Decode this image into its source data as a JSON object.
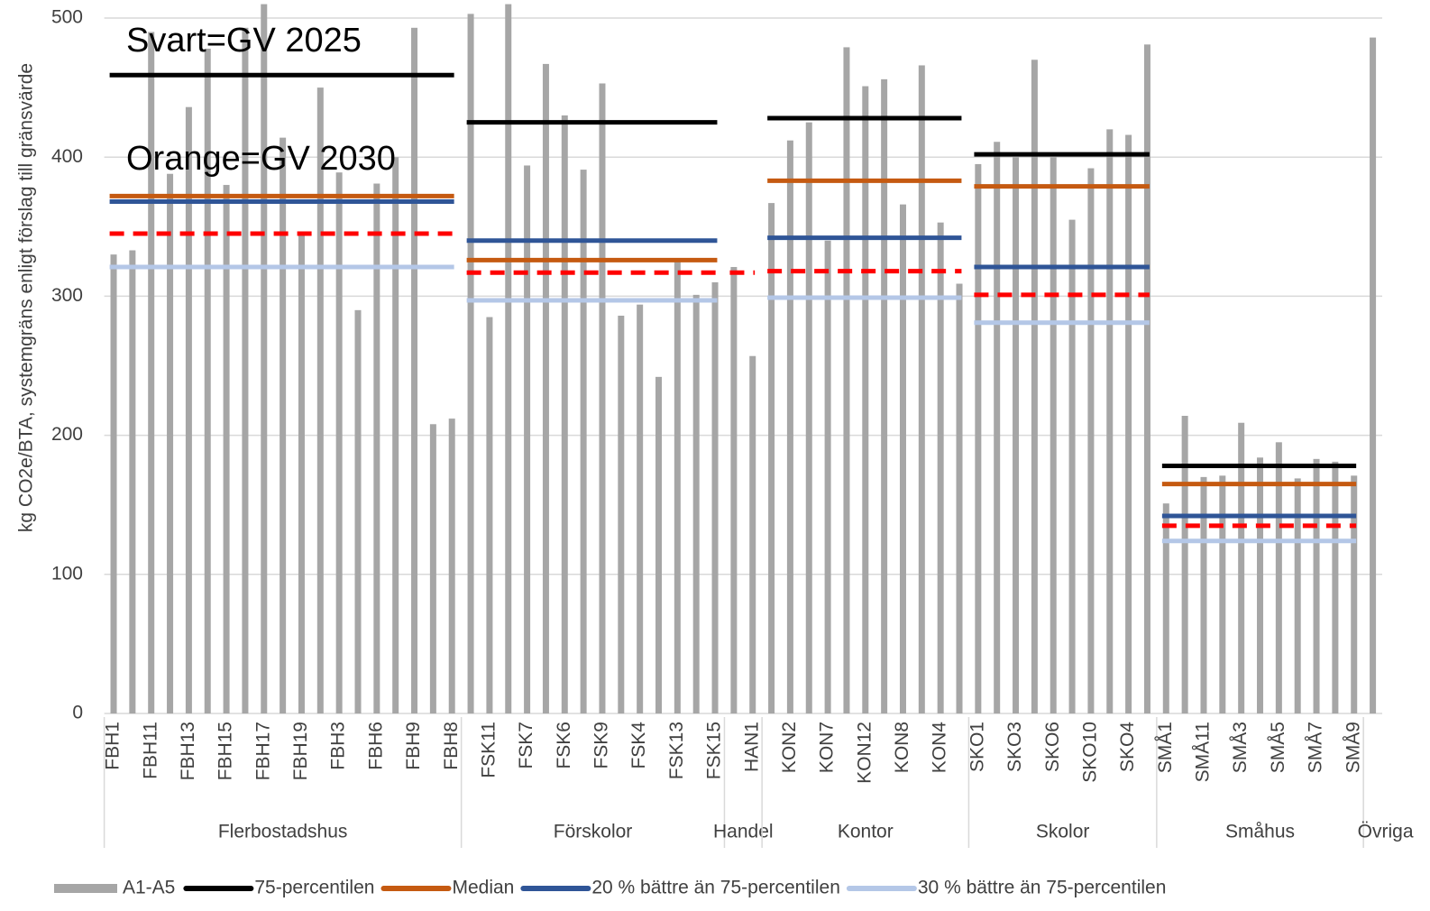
{
  "chart_data": {
    "type": "bar",
    "y_label": "kg CO2e/BTA, systemgräns enligt förslag till gränsvärde",
    "annotations": [
      "Svart=GV 2025",
      "Orange=GV 2030"
    ],
    "groups": [
      {
        "name": "Flerbostadshus",
        "categories": [
          "FBH1",
          null,
          "FBH11",
          null,
          "FBH13",
          null,
          "FBH15",
          null,
          "FBH17",
          null,
          "FBH19",
          null,
          "FBH3",
          null,
          "FBH6",
          null,
          "FBH9",
          null,
          "FBH8"
        ]
      },
      {
        "name": "Förskolor",
        "categories": [
          null,
          "FSK11",
          null,
          "FSK7",
          null,
          "FSK6",
          null,
          "FSK9",
          null,
          "FSK4",
          null,
          "FSK13",
          null,
          "FSK15"
        ]
      },
      {
        "name": "Handel",
        "categories": [
          null,
          "HAN1"
        ]
      },
      {
        "name": "Kontor",
        "categories": [
          null,
          "KON2",
          null,
          "KON7",
          null,
          "KON12",
          null,
          "KON8",
          null,
          "KON4",
          null
        ]
      },
      {
        "name": "Skolor",
        "categories": [
          "SKO1",
          null,
          "SKO3",
          null,
          "SKO6",
          null,
          "SKO10",
          null,
          "SKO4",
          null
        ]
      },
      {
        "name": "Småhus",
        "categories": [
          "SMÅ1",
          null,
          "SMÅ11",
          null,
          "SMÅ3",
          null,
          "SMÅ5",
          null,
          "SMÅ7",
          null,
          "SMÅ9"
        ]
      },
      {
        "name": "Övriga",
        "categories": [
          null
        ]
      }
    ],
    "series": [
      {
        "name": "A1-A5",
        "color": "#a6a6a6",
        "values": [
          330,
          333,
          490,
          388,
          436,
          478,
          380,
          493,
          510,
          414,
          345,
          450,
          389,
          290,
          381,
          400,
          493,
          208,
          212,
          503,
          285,
          510,
          394,
          467,
          430,
          391,
          453,
          286,
          294,
          242,
          325,
          301,
          310,
          321,
          257,
          367,
          412,
          425,
          340,
          479,
          451,
          456,
          366,
          466,
          353,
          309,
          395,
          411,
          400,
          470,
          400,
          355,
          392,
          420,
          416,
          481,
          151,
          214,
          170,
          171,
          209,
          184,
          195,
          169,
          183,
          181,
          171,
          486
        ]
      }
    ],
    "lines": [
      {
        "name": "75-percentilen",
        "color": "#000000",
        "values": [
          459,
          425,
          null,
          428,
          402,
          178,
          null
        ]
      },
      {
        "name": "Median",
        "color": "#c55a11",
        "values": [
          372,
          326,
          null,
          383,
          379,
          165,
          null
        ]
      },
      {
        "name": "20 % bättre än 75-percentilen",
        "color": "#2f5597",
        "values": [
          368,
          340,
          null,
          342,
          321,
          142,
          null
        ]
      },
      {
        "name": "30 % bättre än 75-percentilen",
        "color": "#b4c7e7",
        "values": [
          321,
          297,
          null,
          299,
          281,
          124,
          null
        ]
      },
      {
        "color": "#ff0000",
        "dashed": true,
        "values": [
          345,
          317,
          317,
          318,
          301,
          135,
          null
        ]
      }
    ],
    "ylim": [
      0,
      510
    ],
    "yticks": [
      0,
      100,
      200,
      300,
      400,
      500
    ],
    "grid": true
  }
}
